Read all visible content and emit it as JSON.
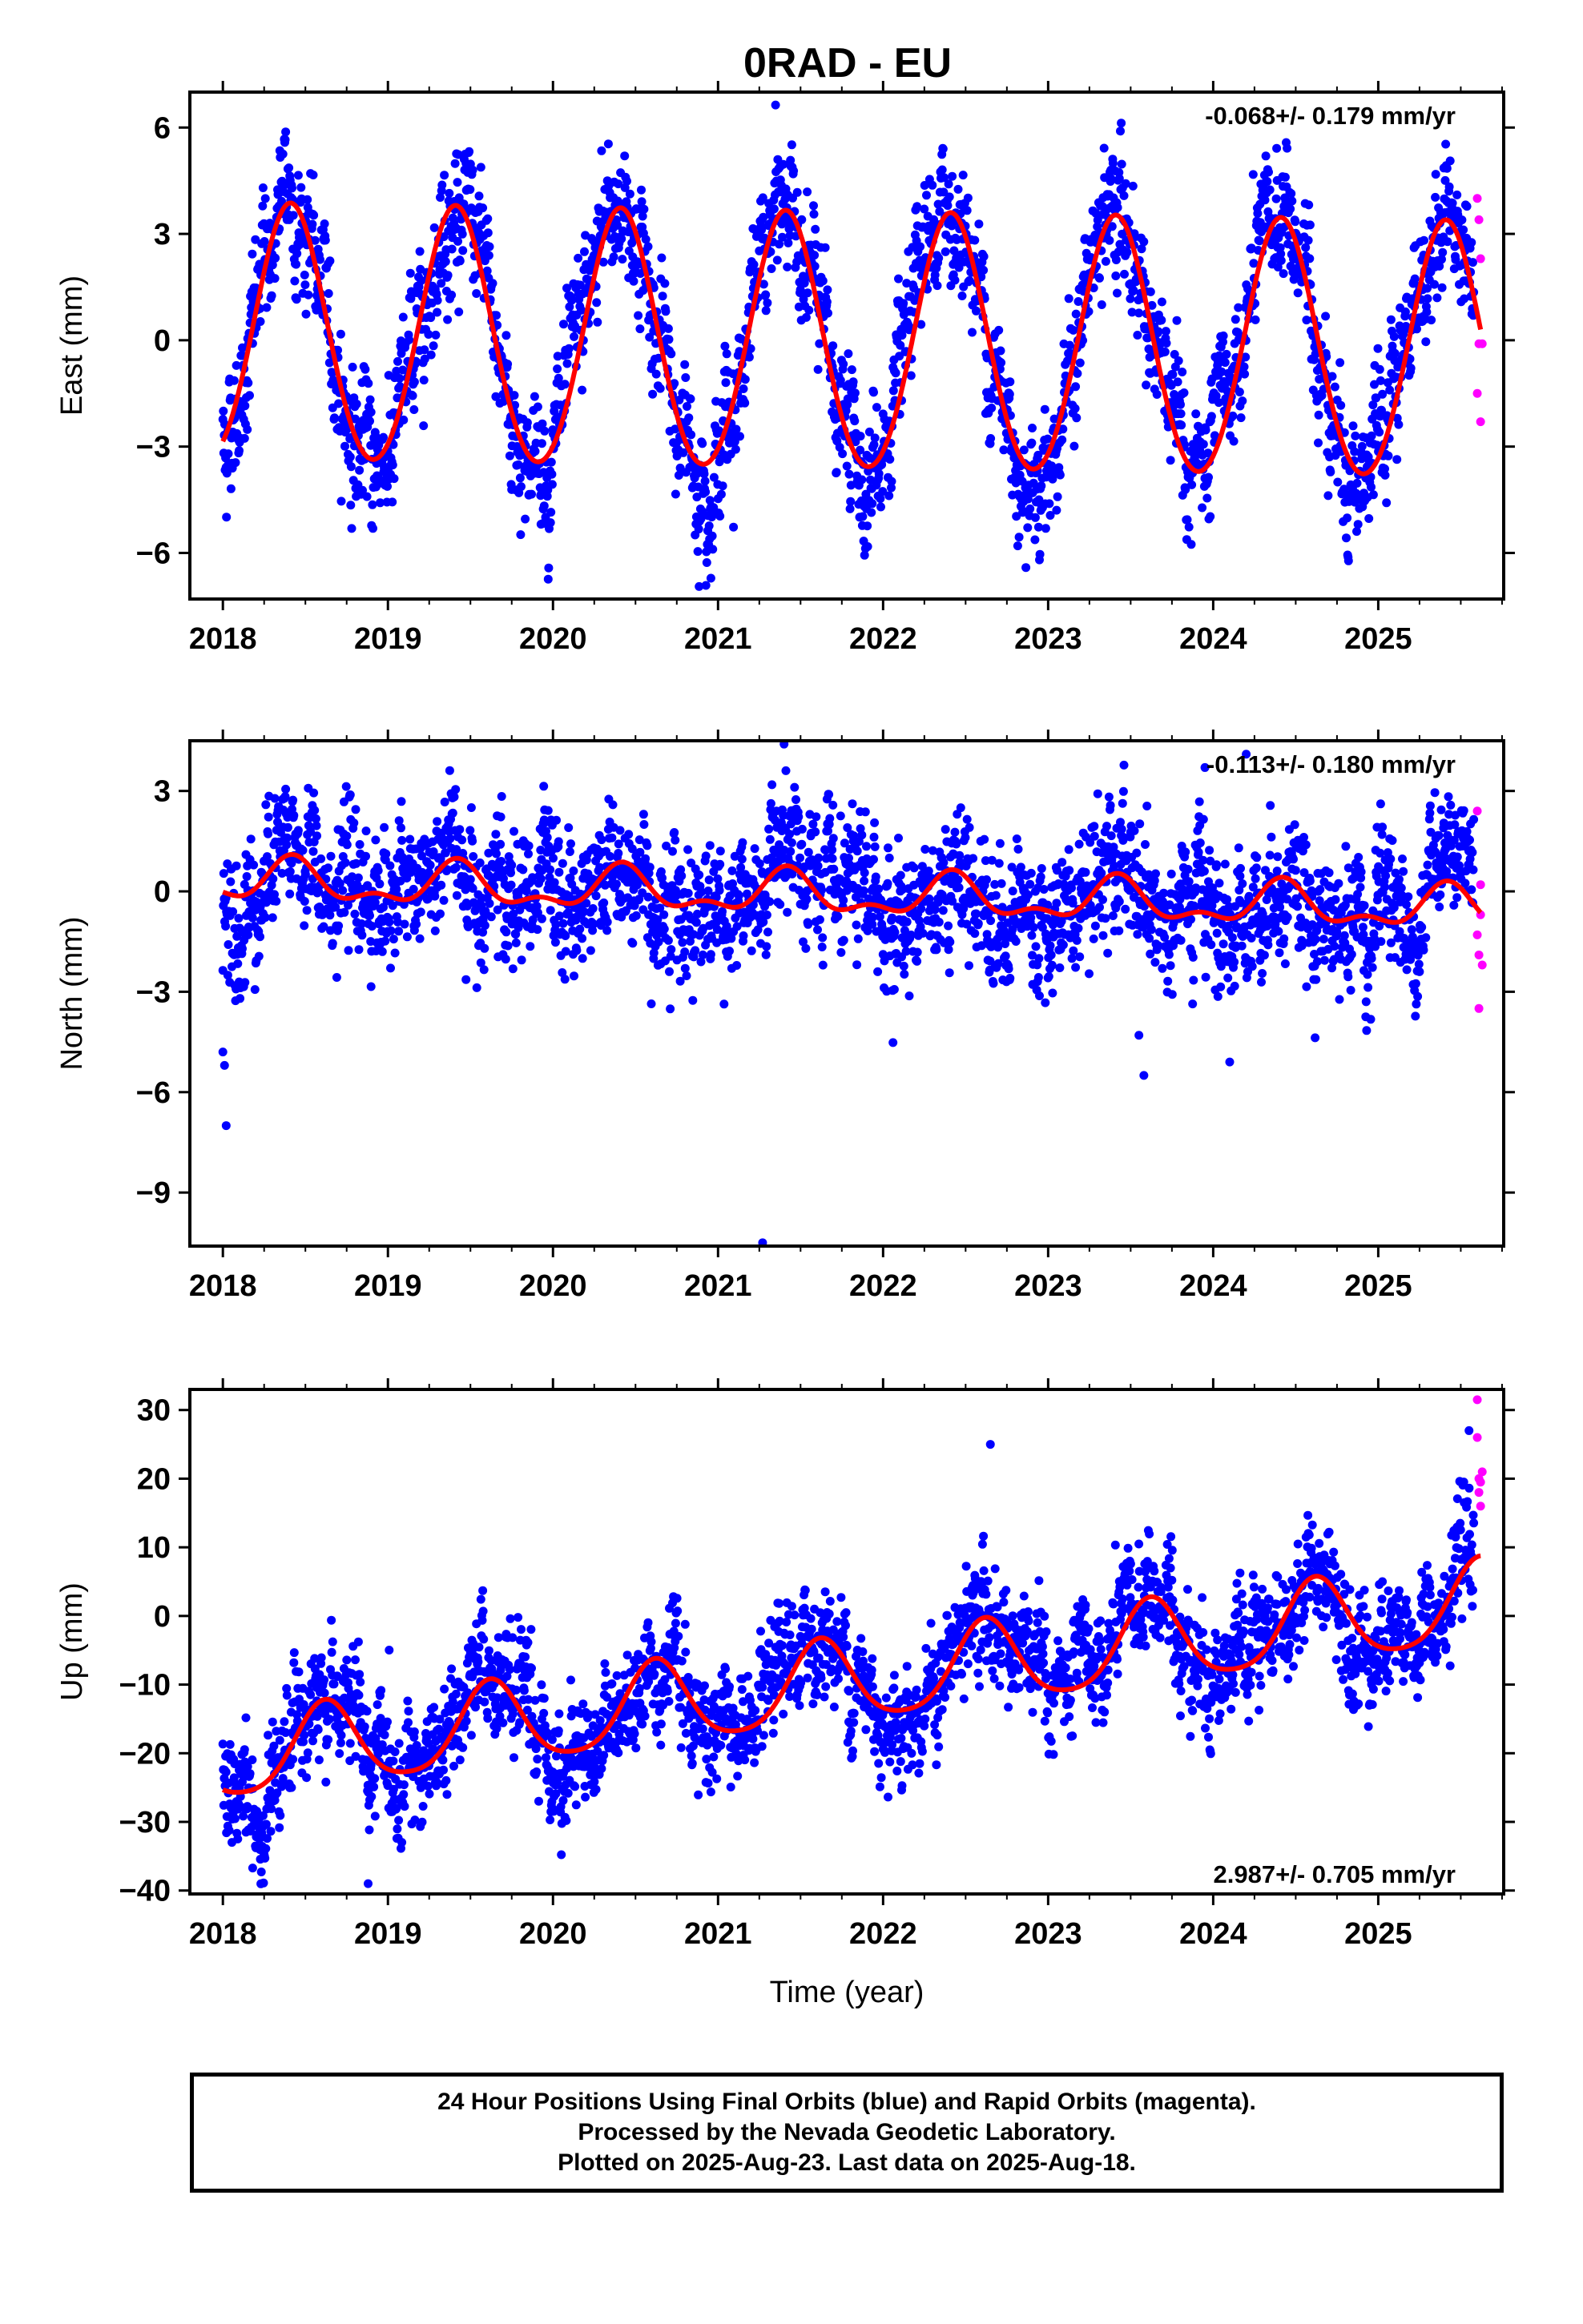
{
  "title": "0RAD - EU",
  "colors": {
    "final": "#0000ff",
    "rapid": "#ff00ff",
    "model": "#ff0000"
  },
  "chart_data": [
    {
      "type": "scatter",
      "ylabel": "East (mm)",
      "xlabel": "",
      "xlim": [
        2017.8,
        2025.76
      ],
      "ylim": [
        -7.3,
        7.0
      ],
      "yticks": [
        -6,
        -3,
        0,
        3,
        6
      ],
      "xticks": [
        2018,
        2019,
        2020,
        2021,
        2022,
        2023,
        2024,
        2025
      ],
      "rate_label": "-0.068+/- 0.179 mm/yr",
      "rate_position": "top-right",
      "series": [
        {
          "name": "Final Orbits",
          "color": "#0000ff",
          "model": {
            "offset": 0.1,
            "trend": -0.068,
            "annual_amplitude": 3.6,
            "annual_peak": 0.41,
            "semiannual_amplitude": 0.2,
            "noise": 0.95,
            "start": 2018.0,
            "end": 2025.58
          }
        },
        {
          "name": "Rapid Orbits",
          "color": "#ff00ff",
          "x": [
            2025.6,
            2025.6,
            2025.61,
            2025.61,
            2025.62,
            2025.62,
            2025.63
          ],
          "y": [
            4.0,
            -1.5,
            3.4,
            -0.1,
            2.3,
            -2.3,
            -0.1
          ]
        },
        {
          "name": "Model fit",
          "color": "#ff0000"
        }
      ]
    },
    {
      "type": "scatter",
      "ylabel": "North (mm)",
      "xlabel": "",
      "xlim": [
        2017.8,
        2025.76
      ],
      "ylim": [
        -10.6,
        4.5
      ],
      "yticks": [
        -9,
        -6,
        -3,
        0,
        3
      ],
      "xticks": [
        2018,
        2019,
        2020,
        2021,
        2022,
        2023,
        2024,
        2025
      ],
      "rate_label": "-0.113+/- 0.180 mm/yr",
      "rate_position": "top-right",
      "series": [
        {
          "name": "Final Orbits",
          "color": "#0000ff",
          "model": {
            "offset": 0.3,
            "trend": -0.113,
            "annual_amplitude": 0.55,
            "annual_peak": 0.42,
            "semiannual_amplitude": 0.3,
            "noise": 1.0,
            "start": 2018.0,
            "end": 2025.58
          },
          "outliers": {
            "x": [
              2018.0,
              2018.01,
              2018.02,
              2021.27,
              2023.55,
              2023.58,
              2024.1,
              2021.4,
              2023.95,
              2024.2
            ],
            "y": [
              -4.8,
              -5.2,
              -7.0,
              -10.5,
              -4.3,
              -5.5,
              -5.1,
              4.4,
              3.7,
              4.1
            ]
          }
        },
        {
          "name": "Rapid Orbits",
          "color": "#ff00ff",
          "x": [
            2025.6,
            2025.6,
            2025.61,
            2025.61,
            2025.62,
            2025.62,
            2025.63
          ],
          "y": [
            2.4,
            -1.3,
            -1.9,
            -3.5,
            0.2,
            -0.7,
            -2.2
          ]
        },
        {
          "name": "Model fit",
          "color": "#ff0000"
        }
      ]
    },
    {
      "type": "scatter",
      "ylabel": "Up (mm)",
      "xlabel": "Time (year)",
      "xlim": [
        2017.8,
        2025.76
      ],
      "ylim": [
        -40.5,
        33.0
      ],
      "yticks": [
        -40,
        -30,
        -20,
        -10,
        0,
        10,
        20,
        30
      ],
      "xticks": [
        2018,
        2019,
        2020,
        2021,
        2022,
        2023,
        2024,
        2025
      ],
      "rate_label": "2.987+/- 0.705 mm/yr",
      "rate_position": "bottom-right",
      "series": [
        {
          "name": "Final Orbits",
          "color": "#0000ff",
          "model": {
            "offset": -21.0,
            "trend": 2.987,
            "annual_amplitude": 6.0,
            "annual_peak": 0.62,
            "semiannual_amplitude": 1.0,
            "noise": 4.2,
            "start": 2018.0,
            "end": 2025.58
          },
          "outliers": {
            "x": [
              2018.88,
              2018.05,
              2018.14,
              2022.65,
              2025.55
            ],
            "y": [
              -39.0,
              -28.0,
              -31.5,
              25.0,
              27.0
            ]
          }
        },
        {
          "name": "Rapid Orbits",
          "color": "#ff00ff",
          "x": [
            2025.6,
            2025.6,
            2025.61,
            2025.61,
            2025.62,
            2025.62,
            2025.63
          ],
          "y": [
            31.5,
            26.0,
            20.0,
            18.0,
            16.0,
            19.5,
            21.0
          ]
        },
        {
          "name": "Model fit",
          "color": "#ff0000"
        }
      ]
    }
  ],
  "footer": {
    "line1": "24 Hour Positions Using Final Orbits (blue) and Rapid Orbits (magenta).",
    "line2": "Processed by the Nevada Geodetic Laboratory.",
    "line3": "Plotted on 2025-Aug-23. Last data on 2025-Aug-18."
  }
}
